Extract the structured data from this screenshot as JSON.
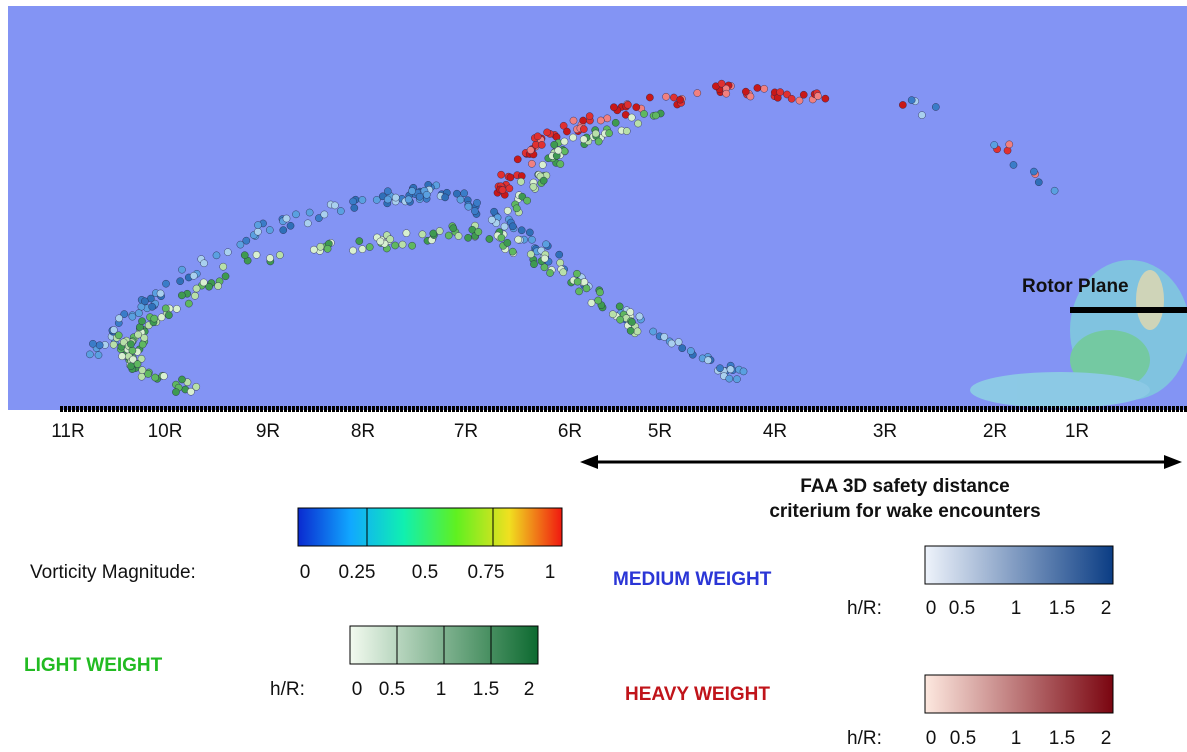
{
  "axis_labels": [
    "11R",
    "10R",
    "9R",
    "8R",
    "7R",
    "6R",
    "5R",
    "4R",
    "3R",
    "2R",
    "1R"
  ],
  "rotor_plane": "Rotor Plane",
  "faa_label": [
    "FAA 3D safety distance",
    "criterium for wake encounters"
  ],
  "vorticity_legend": {
    "title": "Vorticity Magnitude:",
    "ticks": [
      "0",
      "0.25",
      "0.5",
      "0.75",
      "1"
    ]
  },
  "medium_weight": {
    "title": "MEDIUM WEIGHT",
    "unit": "h/R:",
    "ticks": [
      "0",
      "0.5",
      "1",
      "1.5",
      "2"
    ]
  },
  "light_weight": {
    "title": "LIGHT WEIGHT",
    "unit": "h/R:",
    "ticks": [
      "0",
      "0.5",
      "1",
      "1.5",
      "2"
    ]
  },
  "heavy_weight": {
    "title": "HEAVY WEIGHT",
    "unit": "h/R:",
    "ticks": [
      "0",
      "0.5",
      "1",
      "1.5",
      "2"
    ]
  }
}
